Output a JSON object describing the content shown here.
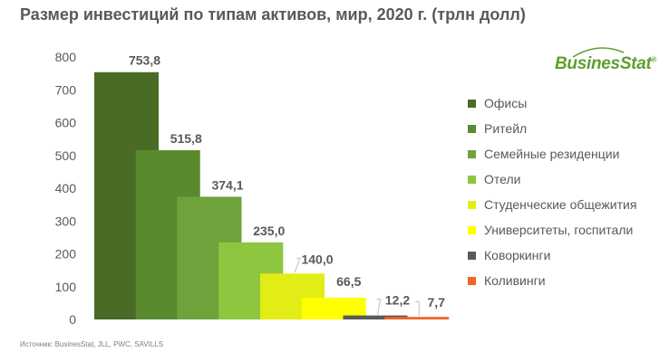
{
  "chart_data": {
    "type": "bar",
    "title": "Размер инвестиций по типам активов, мир, 2020 г. (трлн долл)",
    "categories": [
      "Офисы",
      "Ритейл",
      "Семейные резиденции",
      "Отели",
      "Студенческие общежития",
      "Университеты, госпитали",
      "Коворкинги",
      "Коливинги"
    ],
    "values": [
      753.8,
      515.8,
      374.1,
      235.0,
      140.0,
      66.5,
      12.2,
      7.7
    ],
    "value_labels": [
      "753,8",
      "515,8",
      "374,1",
      "235,0",
      "140,0",
      "66,5",
      "12,2",
      "7,7"
    ],
    "colors": [
      "#4a6b25",
      "#5a8a2e",
      "#6fa23a",
      "#8ec63f",
      "#e2ed16",
      "#ffff00",
      "#5a5a5a",
      "#f26522"
    ],
    "ylim": [
      0,
      800
    ],
    "yticks": [
      0,
      100,
      200,
      300,
      400,
      500,
      600,
      700,
      800
    ],
    "xlabel": "",
    "ylabel": "",
    "grid": false,
    "legend_position": "right"
  },
  "logo": {
    "text": "BusinesStat",
    "mark": "®"
  },
  "source": "Источник: BusinesStat, JLL, PWC, SAVILLS"
}
